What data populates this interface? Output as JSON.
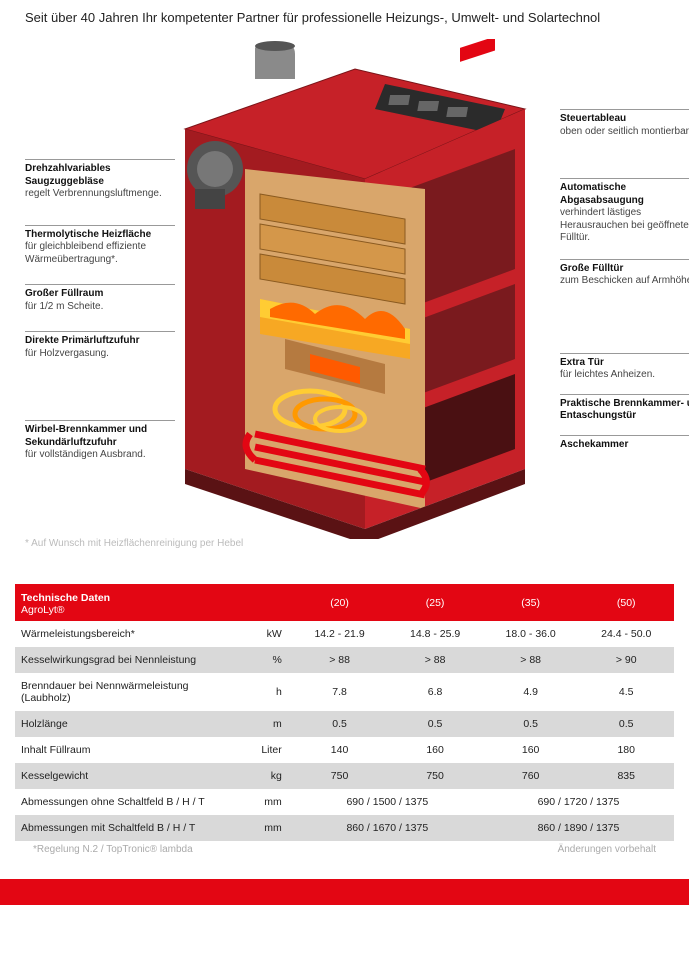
{
  "subtitle": "Seit über 40 Jahren Ihr kompetenter Partner für professionelle Heizungs-, Umwelt- und Solartechnol",
  "colors": {
    "brand_red": "#e30613",
    "boiler_body": "#c62128",
    "boiler_dark": "#6b2a2a",
    "boiler_panel": "#2b2b2b",
    "wood": "#c98a3a",
    "flame": "#f7a823",
    "coil": "#e30613",
    "brick": "#d9a66b",
    "gray_alt": "#d9d9d9"
  },
  "callouts_left": [
    {
      "bold": "Drehzahlvariables Saugzuggebläse",
      "text": "regelt Verbrennungsluft­menge."
    },
    {
      "bold": "Thermolytische Heizfläche",
      "text": "für gleichbleibend effiziente Wärmeübertragung*."
    },
    {
      "bold": "Großer Füllraum",
      "text": "für 1/2 m Scheite."
    },
    {
      "bold": "Direkte Primärluftzufuhr",
      "text": "für Holzvergasung."
    },
    {
      "bold": "Wirbel-Brennkammer und Sekundärluftzufuhr",
      "text": "für vollständigen Ausbrand."
    }
  ],
  "callouts_right": [
    {
      "bold": "Steuertableau",
      "text": "oben oder seitlich montierbar."
    },
    {
      "bold": "Automatische Abgasabsaugung",
      "text": "verhindert lästiges Herausrauchen bei geöffneter Fülltür."
    },
    {
      "bold": "Große Fülltür",
      "text": "zum Beschicken auf Armhöhe."
    },
    {
      "bold": "Extra Tür",
      "text": "für leichtes Anheizen."
    },
    {
      "bold": "Praktische Brennkammer- und Entaschungstür",
      "text": ""
    },
    {
      "bold": "Aschekammer",
      "text": ""
    }
  ],
  "footnote_diagram": "* Auf Wunsch mit Heizflächenreinigung per Hebel",
  "table": {
    "header_title": "Technische Daten",
    "header_product": "AgroLyt®",
    "models": [
      "(20)",
      "(25)",
      "(35)",
      "(50)"
    ],
    "rows": [
      {
        "label": "Wärmeleistungsbereich*",
        "unit": "kW",
        "vals": [
          "14.2 - 21.9",
          "14.8 - 25.9",
          "18.0 - 36.0",
          "24.4 - 50.0"
        ],
        "alt": false
      },
      {
        "label": "Kesselwirkungsgrad bei Nennleistung",
        "unit": "%",
        "vals": [
          "> 88",
          "> 88",
          "> 88",
          "> 90"
        ],
        "alt": true
      },
      {
        "label": "Brenndauer bei Nennwärmeleistung (Laubholz)",
        "unit": "h",
        "vals": [
          "7.8",
          "6.8",
          "4.9",
          "4.5"
        ],
        "alt": false
      },
      {
        "label": "Holzlänge",
        "unit": "m",
        "vals": [
          "0.5",
          "0.5",
          "0.5",
          "0.5"
        ],
        "alt": true
      },
      {
        "label": "Inhalt Füllraum",
        "unit": "Liter",
        "vals": [
          "140",
          "160",
          "160",
          "180"
        ],
        "alt": false
      },
      {
        "label": "Kesselgewicht",
        "unit": "kg",
        "vals": [
          "750",
          "750",
          "760",
          "835"
        ],
        "alt": true
      }
    ],
    "rows_span": [
      {
        "label": "Abmessungen ohne Schaltfeld B / H / T",
        "unit": "mm",
        "vals": [
          "690 / 1500 / 1375",
          "690 / 1720 / 1375"
        ],
        "alt": false
      },
      {
        "label": "Abmessungen mit Schaltfeld B / H / T",
        "unit": "mm",
        "vals": [
          "860 / 1670 / 1375",
          "860 / 1890 / 1375"
        ],
        "alt": true
      }
    ],
    "footnote_left": "*Regelung N.2 / TopTronic® lambda",
    "footnote_right": "Änderungen vorbehalt"
  }
}
